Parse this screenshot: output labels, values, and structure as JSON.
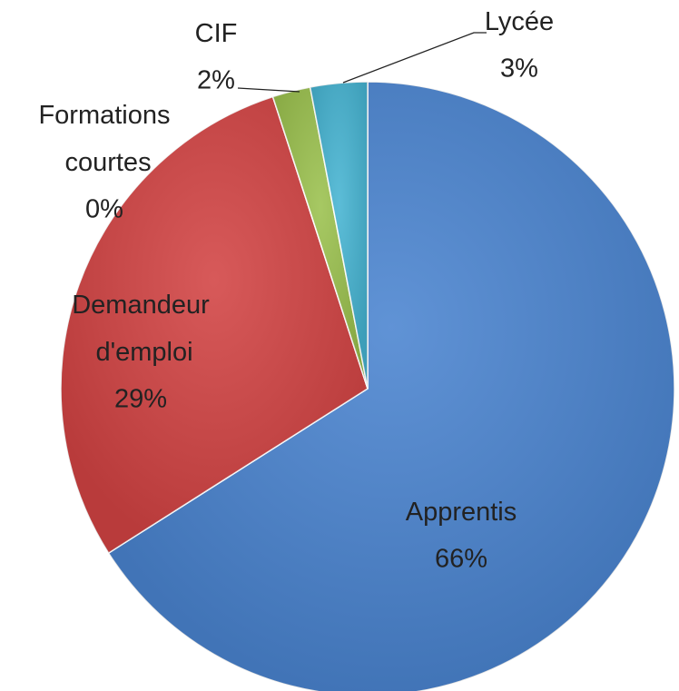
{
  "chart_data": {
    "type": "pie",
    "categories": [
      "Apprentis",
      "Demandeur d'emploi",
      "Formations courtes",
      "CIF",
      "Lycée"
    ],
    "values": [
      66,
      29,
      0,
      2,
      3
    ],
    "value_labels": [
      "66%",
      "29%",
      "0%",
      "2%",
      "3%"
    ],
    "colors": [
      "#4a84d0",
      "#d24343",
      "#8064a2",
      "#9bc14e",
      "#46b4d2"
    ]
  }
}
